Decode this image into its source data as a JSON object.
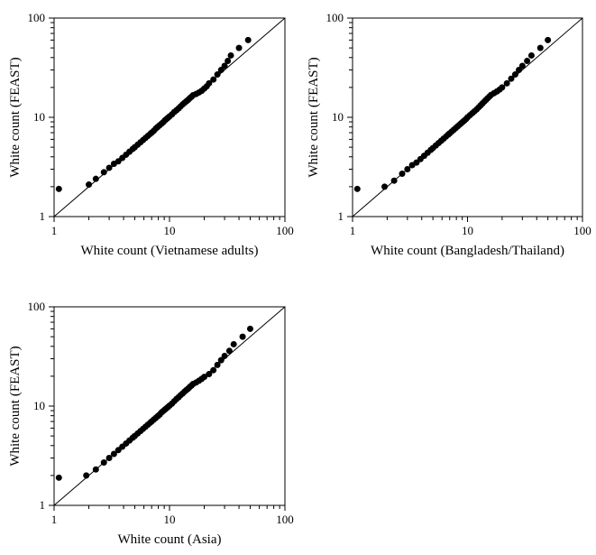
{
  "figure": {
    "background_color": "#ffffff",
    "panels": [
      {
        "type": "scatter",
        "xlabel": "White count (Vietnamese adults)",
        "ylabel": "White count (FEAST)",
        "label_fontsize": 15,
        "tick_fontsize": 13,
        "xscale": "log",
        "yscale": "log",
        "xlim": [
          1,
          100
        ],
        "ylim": [
          1,
          100
        ],
        "major_ticks": [
          1,
          10,
          100
        ],
        "minor_ticks": [
          2,
          3,
          4,
          5,
          6,
          7,
          8,
          9,
          20,
          30,
          40,
          50,
          60,
          70,
          80,
          90
        ],
        "marker_color": "#000000",
        "marker_radius": 3.5,
        "line_color": "#000000",
        "line_width": 1,
        "identity_line": true,
        "data": [
          [
            1.1,
            1.9
          ],
          [
            2.0,
            2.1
          ],
          [
            2.3,
            2.4
          ],
          [
            2.7,
            2.8
          ],
          [
            3.0,
            3.1
          ],
          [
            3.3,
            3.4
          ],
          [
            3.6,
            3.6
          ],
          [
            3.9,
            3.9
          ],
          [
            4.2,
            4.2
          ],
          [
            4.5,
            4.5
          ],
          [
            4.8,
            4.8
          ],
          [
            5.0,
            5.0
          ],
          [
            5.3,
            5.3
          ],
          [
            5.6,
            5.6
          ],
          [
            5.9,
            5.9
          ],
          [
            6.2,
            6.2
          ],
          [
            6.5,
            6.5
          ],
          [
            6.8,
            6.8
          ],
          [
            7.0,
            7.0
          ],
          [
            7.3,
            7.3
          ],
          [
            7.6,
            7.7
          ],
          [
            7.9,
            8.0
          ],
          [
            8.2,
            8.3
          ],
          [
            8.5,
            8.6
          ],
          [
            8.8,
            8.9
          ],
          [
            9.1,
            9.3
          ],
          [
            9.4,
            9.6
          ],
          [
            9.7,
            9.9
          ],
          [
            10.0,
            10.2
          ],
          [
            10.5,
            10.7
          ],
          [
            11.0,
            11.3
          ],
          [
            11.5,
            11.8
          ],
          [
            12.0,
            12.3
          ],
          [
            12.5,
            12.9
          ],
          [
            13.0,
            13.5
          ],
          [
            13.5,
            14.0
          ],
          [
            14.0,
            14.5
          ],
          [
            14.5,
            15.0
          ],
          [
            15.0,
            15.6
          ],
          [
            15.5,
            16.1
          ],
          [
            16.0,
            16.7
          ],
          [
            17.0,
            17.2
          ],
          [
            18.0,
            17.8
          ],
          [
            19.0,
            18.5
          ],
          [
            20.0,
            19.5
          ],
          [
            21.0,
            20.5
          ],
          [
            22.0,
            22.0
          ],
          [
            24.0,
            24.0
          ],
          [
            26.0,
            27.0
          ],
          [
            28.0,
            30.0
          ],
          [
            30.0,
            33.0
          ],
          [
            32.0,
            37.0
          ],
          [
            34.0,
            42.0
          ],
          [
            40.0,
            50.0
          ],
          [
            48.0,
            60.0
          ]
        ]
      },
      {
        "type": "scatter",
        "xlabel": "White count (Bangladesh/Thailand)",
        "ylabel": "White count (FEAST)",
        "label_fontsize": 15,
        "tick_fontsize": 13,
        "xscale": "log",
        "yscale": "log",
        "xlim": [
          1,
          100
        ],
        "ylim": [
          1,
          100
        ],
        "major_ticks": [
          1,
          10,
          100
        ],
        "minor_ticks": [
          2,
          3,
          4,
          5,
          6,
          7,
          8,
          9,
          20,
          30,
          40,
          50,
          60,
          70,
          80,
          90
        ],
        "marker_color": "#000000",
        "marker_radius": 3.5,
        "line_color": "#000000",
        "line_width": 1,
        "identity_line": true,
        "data": [
          [
            1.1,
            1.9
          ],
          [
            1.9,
            2.0
          ],
          [
            2.3,
            2.3
          ],
          [
            2.7,
            2.7
          ],
          [
            3.0,
            3.0
          ],
          [
            3.3,
            3.3
          ],
          [
            3.6,
            3.5
          ],
          [
            3.9,
            3.8
          ],
          [
            4.2,
            4.1
          ],
          [
            4.5,
            4.4
          ],
          [
            4.8,
            4.7
          ],
          [
            5.0,
            4.9
          ],
          [
            5.3,
            5.2
          ],
          [
            5.6,
            5.5
          ],
          [
            5.9,
            5.8
          ],
          [
            6.2,
            6.1
          ],
          [
            6.5,
            6.4
          ],
          [
            6.8,
            6.7
          ],
          [
            7.0,
            6.9
          ],
          [
            7.3,
            7.2
          ],
          [
            7.6,
            7.5
          ],
          [
            7.9,
            7.8
          ],
          [
            8.2,
            8.1
          ],
          [
            8.5,
            8.4
          ],
          [
            8.8,
            8.7
          ],
          [
            9.1,
            9.0
          ],
          [
            9.4,
            9.3
          ],
          [
            9.7,
            9.6
          ],
          [
            10.0,
            10.0
          ],
          [
            10.5,
            10.5
          ],
          [
            11.0,
            11.0
          ],
          [
            11.5,
            11.5
          ],
          [
            12.0,
            12.0
          ],
          [
            12.5,
            12.6
          ],
          [
            13.0,
            13.2
          ],
          [
            13.5,
            13.8
          ],
          [
            14.0,
            14.4
          ],
          [
            14.5,
            15.0
          ],
          [
            15.0,
            15.6
          ],
          [
            15.5,
            16.2
          ],
          [
            16.0,
            16.8
          ],
          [
            17.0,
            17.5
          ],
          [
            18.0,
            18.2
          ],
          [
            19.0,
            19.0
          ],
          [
            20.0,
            20.0
          ],
          [
            22.0,
            22.0
          ],
          [
            24.0,
            24.5
          ],
          [
            26.0,
            27.0
          ],
          [
            28.0,
            30.0
          ],
          [
            30.0,
            33.0
          ],
          [
            33.0,
            37.0
          ],
          [
            36.0,
            42.0
          ],
          [
            43.0,
            50.0
          ],
          [
            50.0,
            60.0
          ]
        ]
      },
      {
        "type": "scatter",
        "xlabel": "White count (Asia)",
        "ylabel": "White count (FEAST)",
        "label_fontsize": 15,
        "tick_fontsize": 13,
        "xscale": "log",
        "yscale": "log",
        "xlim": [
          1,
          100
        ],
        "ylim": [
          1,
          100
        ],
        "major_ticks": [
          1,
          10,
          100
        ],
        "minor_ticks": [
          2,
          3,
          4,
          5,
          6,
          7,
          8,
          9,
          20,
          30,
          40,
          50,
          60,
          70,
          80,
          90
        ],
        "marker_color": "#000000",
        "marker_radius": 3.5,
        "line_color": "#000000",
        "line_width": 1,
        "identity_line": true,
        "data": [
          [
            1.1,
            1.9
          ],
          [
            1.9,
            2.0
          ],
          [
            2.3,
            2.3
          ],
          [
            2.7,
            2.7
          ],
          [
            3.0,
            3.0
          ],
          [
            3.3,
            3.3
          ],
          [
            3.6,
            3.6
          ],
          [
            3.9,
            3.9
          ],
          [
            4.2,
            4.2
          ],
          [
            4.5,
            4.5
          ],
          [
            4.8,
            4.8
          ],
          [
            5.0,
            5.0
          ],
          [
            5.3,
            5.3
          ],
          [
            5.6,
            5.6
          ],
          [
            5.9,
            5.9
          ],
          [
            6.2,
            6.2
          ],
          [
            6.5,
            6.5
          ],
          [
            6.8,
            6.8
          ],
          [
            7.0,
            7.0
          ],
          [
            7.3,
            7.3
          ],
          [
            7.6,
            7.6
          ],
          [
            7.9,
            7.9
          ],
          [
            8.2,
            8.2
          ],
          [
            8.5,
            8.6
          ],
          [
            8.8,
            8.9
          ],
          [
            9.1,
            9.2
          ],
          [
            9.4,
            9.5
          ],
          [
            9.7,
            9.8
          ],
          [
            10.0,
            10.1
          ],
          [
            10.5,
            10.6
          ],
          [
            11.0,
            11.2
          ],
          [
            11.5,
            11.8
          ],
          [
            12.0,
            12.3
          ],
          [
            12.5,
            12.9
          ],
          [
            13.0,
            13.4
          ],
          [
            13.5,
            14.0
          ],
          [
            14.0,
            14.5
          ],
          [
            14.5,
            15.0
          ],
          [
            15.0,
            15.6
          ],
          [
            15.5,
            16.1
          ],
          [
            16.0,
            16.7
          ],
          [
            17.0,
            17.3
          ],
          [
            18.0,
            18.0
          ],
          [
            19.0,
            18.8
          ],
          [
            20.0,
            19.7
          ],
          [
            22.0,
            21.0
          ],
          [
            24.0,
            23.0
          ],
          [
            26.0,
            26.0
          ],
          [
            28.0,
            29.0
          ],
          [
            30.0,
            32.0
          ],
          [
            33.0,
            36.0
          ],
          [
            36.0,
            42.0
          ],
          [
            43.0,
            50.0
          ],
          [
            50.0,
            60.0
          ]
        ]
      }
    ]
  }
}
